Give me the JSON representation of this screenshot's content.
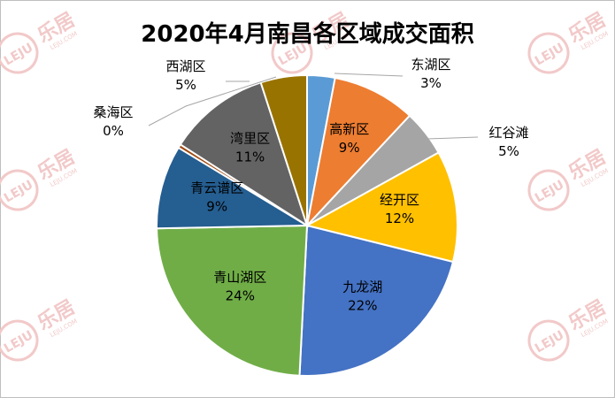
{
  "chart_data": {
    "type": "pie",
    "title": "2020年4月南昌各区域成交面积",
    "start_angle_deg": 0,
    "direction": "clockwise",
    "slices": [
      {
        "label": "东湖区",
        "percent_label": "3%",
        "value": 3,
        "color": "#5b9bd5",
        "label_pos": "outside"
      },
      {
        "label": "高新区",
        "percent_label": "9%",
        "value": 9,
        "color": "#ed7d31",
        "label_pos": "inside"
      },
      {
        "label": "红谷滩",
        "percent_label": "5%",
        "value": 5,
        "color": "#a5a5a5",
        "label_pos": "outside"
      },
      {
        "label": "经开区",
        "percent_label": "12%",
        "value": 12,
        "color": "#ffc000",
        "label_pos": "inside"
      },
      {
        "label": "九龙湖",
        "percent_label": "22%",
        "value": 22,
        "color": "#4472c4",
        "label_pos": "inside"
      },
      {
        "label": "青山湖区",
        "percent_label": "24%",
        "value": 24,
        "color": "#70ad47",
        "label_pos": "inside"
      },
      {
        "label": "青云谱区",
        "percent_label": "9%",
        "value": 9,
        "color": "#255e91",
        "label_pos": "inside"
      },
      {
        "label": "桑海区",
        "percent_label": "0%",
        "value": 0.4,
        "color": "#9e480e",
        "label_pos": "outside"
      },
      {
        "label": "湾里区",
        "percent_label": "11%",
        "value": 11,
        "color": "#636363",
        "label_pos": "inside"
      },
      {
        "label": "西湖区",
        "percent_label": "5%",
        "value": 5,
        "color": "#997300",
        "label_pos": "outside"
      }
    ]
  },
  "watermark": {
    "logo_text": "LEJU",
    "brand_text": "乐居",
    "url_text": "LEJU.COM",
    "color": "#f2c9c9"
  }
}
